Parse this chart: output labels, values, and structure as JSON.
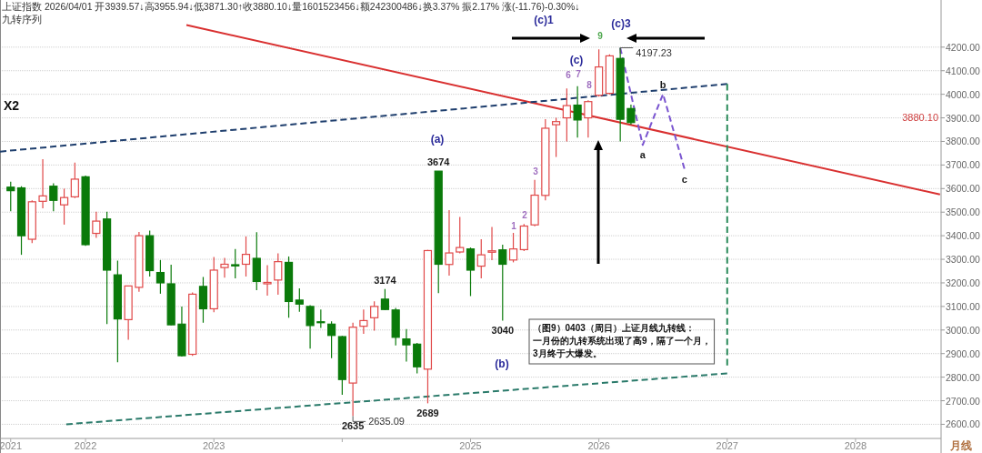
{
  "chart_data": {
    "type": "candlestick",
    "title": "上证指数 2026/04/01 开3939.57↓高3955.94↓低3871.30↑收3880.10↓量1601523456↓额242300486↓换3.37% 振2.17% 涨(-11.76)-0.30%↓",
    "subtitle": "九转序列",
    "x": [
      "2021-06",
      "2021-07",
      "2021-08",
      "2021-09",
      "2021-10",
      "2021-11",
      "2021-12",
      "2022-01",
      "2022-02",
      "2022-03",
      "2022-04",
      "2022-05",
      "2022-06",
      "2022-07",
      "2022-08",
      "2022-09",
      "2022-10",
      "2022-11",
      "2022-12",
      "2023-01",
      "2023-02",
      "2023-03",
      "2023-04",
      "2023-05",
      "2023-06",
      "2023-07",
      "2023-08",
      "2023-09",
      "2023-10",
      "2023-11",
      "2023-12",
      "2024-01",
      "2024-02",
      "2024-03",
      "2024-04",
      "2024-05",
      "2024-06",
      "2024-07",
      "2024-08",
      "2024-09",
      "2024-10",
      "2024-11",
      "2024-12",
      "2025-01",
      "2025-02",
      "2025-03",
      "2025-04",
      "2025-05",
      "2025-06",
      "2025-07",
      "2025-08",
      "2025-09",
      "2025-10",
      "2025-11",
      "2025-12",
      "2026-01",
      "2026-02",
      "2026-03",
      "2026-04"
    ],
    "ohlc": [
      [
        3606,
        3629,
        3504,
        3591
      ],
      [
        3603,
        3610,
        3319,
        3400
      ],
      [
        3385,
        3550,
        3369,
        3544
      ],
      [
        3546,
        3725,
        3516,
        3569
      ],
      [
        3610,
        3622,
        3504,
        3550
      ],
      [
        3531,
        3600,
        3447,
        3562
      ],
      [
        3565,
        3710,
        3560,
        3640
      ],
      [
        3650,
        3655,
        3357,
        3362
      ],
      [
        3410,
        3502,
        3391,
        3462
      ],
      [
        3471,
        3502,
        3025,
        3254
      ],
      [
        3234,
        3294,
        2863,
        3047
      ],
      [
        3044,
        3187,
        2959,
        3187
      ],
      [
        3181,
        3416,
        3162,
        3400
      ],
      [
        3400,
        3422,
        3227,
        3252
      ],
      [
        3244,
        3297,
        3154,
        3200
      ],
      [
        3196,
        3277,
        3020,
        3022
      ],
      [
        3025,
        3100,
        2887,
        2891
      ],
      [
        2897,
        3159,
        2890,
        3152
      ],
      [
        3185,
        3225,
        3031,
        3090
      ],
      [
        3090,
        3310,
        3075,
        3254
      ],
      [
        3265,
        3306,
        3222,
        3279
      ],
      [
        3277,
        3344,
        3219,
        3272
      ],
      [
        3279,
        3397,
        3227,
        3321
      ],
      [
        3304,
        3415,
        3169,
        3206
      ],
      [
        3196,
        3275,
        3146,
        3202
      ],
      [
        3212,
        3325,
        3150,
        3290
      ],
      [
        3287,
        3312,
        3052,
        3121
      ],
      [
        3127,
        3177,
        3077,
        3110
      ],
      [
        3100,
        3105,
        2921,
        3019
      ],
      [
        3035,
        3087,
        3009,
        3031
      ],
      [
        3025,
        3037,
        2881,
        2977
      ],
      [
        2972,
        2975,
        2725,
        2790
      ],
      [
        2775,
        3031,
        2635.09,
        3012
      ],
      [
        3016,
        3087,
        2984,
        3040
      ],
      [
        3052,
        3122,
        2997,
        3100
      ],
      [
        3131,
        3174,
        3085,
        3087
      ],
      [
        3085,
        3094,
        2935,
        2969
      ],
      [
        2962,
        3004,
        2866,
        2937
      ],
      [
        2940,
        2945,
        2816,
        2844
      ],
      [
        2834,
        3340,
        2689,
        3337
      ],
      [
        3674,
        3674,
        3156,
        3279
      ],
      [
        3278,
        3509,
        3231,
        3327
      ],
      [
        3331,
        3480,
        3325,
        3350
      ],
      [
        3344,
        3350,
        3144,
        3254
      ],
      [
        3271,
        3385,
        3219,
        3319
      ],
      [
        3330,
        3437,
        3296,
        3336
      ],
      [
        3340,
        3362,
        3040,
        3279
      ],
      [
        3297,
        3412,
        3287,
        3344
      ],
      [
        3341,
        3450,
        3335,
        3441
      ],
      [
        3446,
        3637,
        3440,
        3572
      ],
      [
        3571,
        3894,
        3550,
        3856
      ],
      [
        3871,
        3900,
        3734,
        3884
      ],
      [
        3900,
        4025,
        3800,
        3952
      ],
      [
        3954,
        4034,
        3816,
        3891
      ],
      [
        3900,
        3975,
        3816,
        3969
      ],
      [
        3996,
        4191,
        3990,
        4116
      ],
      [
        4004,
        4169,
        4000,
        4163
      ],
      [
        4152,
        4197.23,
        3800,
        3894
      ],
      [
        3939.57,
        3955.94,
        3871.3,
        3880.1
      ]
    ],
    "colors": [
      "#0a7a0a",
      "#0a7a0a",
      "#e04848",
      "#e04848",
      "#0a7a0a",
      "#e04848",
      "#e04848",
      "#0a7a0a",
      "#e04848",
      "#0a7a0a",
      "#0a7a0a",
      "#e04848",
      "#e04848",
      "#0a7a0a",
      "#0a7a0a",
      "#0a7a0a",
      "#0a7a0a",
      "#e04848",
      "#0a7a0a",
      "#e04848",
      "#e04848",
      "#0a7a0a",
      "#e04848",
      "#0a7a0a",
      "#e04848",
      "#e04848",
      "#0a7a0a",
      "#0a7a0a",
      "#0a7a0a",
      "#0a7a0a",
      "#0a7a0a",
      "#0a7a0a",
      "#e04848",
      "#e04848",
      "#e04848",
      "#0a7a0a",
      "#0a7a0a",
      "#0a7a0a",
      "#0a7a0a",
      "#e04848",
      "#0a7a0a",
      "#e04848",
      "#e04848",
      "#0a7a0a",
      "#e04848",
      "#e04848",
      "#0a7a0a",
      "#e04848",
      "#e04848",
      "#e04848",
      "#e04848",
      "#e04848",
      "#e04848",
      "#0a7a0a",
      "#e04848",
      "#e04848",
      "#e04848",
      "#0a7a0a",
      "#0a7a0a"
    ],
    "series": [
      {
        "type": "line",
        "color": "#d93030",
        "line_style": "solid",
        "x": [
          "2022-10-14",
          "2028-08-28"
        ],
        "values": [
          4294,
          3575
        ]
      },
      {
        "type": "line",
        "color": "#1f3f6e",
        "line_style": "dashed",
        "x": [
          "2021-05",
          "2027-01"
        ],
        "values": [
          3757,
          4044
        ]
      },
      {
        "type": "line",
        "color": "#2a7a6a",
        "line_style": "dashed",
        "x": [
          "2021-11-07",
          "2027-01"
        ],
        "values": [
          2600,
          2816
        ]
      },
      {
        "type": "line",
        "color": "#2a8a5a",
        "line_style": "dashed",
        "x": [
          "2027-01",
          "2027-01"
        ],
        "values": [
          4044,
          2850
        ]
      },
      {
        "type": "line",
        "color": "#7a55d0",
        "line_style": "dashed",
        "x": [
          "2026-03",
          "2026-05-04",
          "2026-07",
          "2026-09"
        ],
        "values": [
          4197,
          3785,
          4001,
          3684
        ]
      }
    ],
    "xlim": [
      "2021-05",
      "2028-09"
    ],
    "xticks": [
      {
        "value": "2021-06",
        "label": "2021"
      },
      {
        "value": "2022-01",
        "label": "2022"
      },
      {
        "value": "2023-01",
        "label": "2023"
      },
      {
        "value": "2024-01",
        "label": null
      },
      {
        "value": "2025-01",
        "label": "2025"
      },
      {
        "value": "2026-01",
        "label": "2026"
      },
      {
        "value": "2027-01",
        "label": "2027"
      },
      {
        "value": "2028-01",
        "label": "2028"
      }
    ],
    "ylim": [
      2540,
      4400
    ],
    "yticks": [
      {
        "value": 2600,
        "label": "2600.00"
      },
      {
        "value": 2700,
        "label": "2700.00"
      },
      {
        "value": 2800,
        "label": "2800.00"
      },
      {
        "value": 2900,
        "label": "2900.00"
      },
      {
        "value": 3000,
        "label": "3000.00"
      },
      {
        "value": 3100,
        "label": "3100.00"
      },
      {
        "value": 3200,
        "label": "3200.00"
      },
      {
        "value": 3300,
        "label": "3300.00"
      },
      {
        "value": 3400,
        "label": "3400.00"
      },
      {
        "value": 3500,
        "label": "3500.00"
      },
      {
        "value": 3600,
        "label": "3600.00"
      },
      {
        "value": 3700,
        "label": "3700.00"
      },
      {
        "value": 3800,
        "label": "3800.00"
      },
      {
        "value": 3900,
        "label": "3900.00"
      },
      {
        "value": 4000,
        "label": "4000.00"
      },
      {
        "value": 4100,
        "label": "4100.00"
      },
      {
        "value": 4200,
        "label": "4200.00"
      }
    ],
    "grid": "y",
    "annotations": [
      "X2",
      "（图9）0403（周日）上证月线九转线：",
      "一月份的九转系统出现了高9，隔了一个月，",
      "3月终于大爆发。",
      "月线",
      "3880.10",
      "(a)",
      "(b)",
      "(c)",
      "(c)1",
      "(c)3",
      "1",
      "2",
      "3",
      "6",
      "7",
      "8",
      "9",
      {
        "text": "2635.09",
        "x": "2024-02",
        "y": 2635.09
      },
      {
        "text": "2635",
        "x": "2024-02",
        "y": 2635.09
      },
      {
        "text": "2689",
        "x": "2024-09",
        "y": 2689
      },
      {
        "text": "3674",
        "x": "2024-10",
        "y": 3674
      },
      {
        "text": "3174",
        "x": "2024-05",
        "y": 3174
      },
      {
        "text": "3040",
        "x": "2025-04",
        "y": 3040
      },
      {
        "text": "4197.23",
        "x": "2026-03",
        "y": 4197.23
      },
      {
        "text": "a",
        "x": "2026-05-04",
        "y": 3785
      },
      {
        "text": "b",
        "x": "2026-07",
        "y": 4001
      },
      {
        "text": "c",
        "x": "2026-09",
        "y": 3684
      }
    ]
  }
}
